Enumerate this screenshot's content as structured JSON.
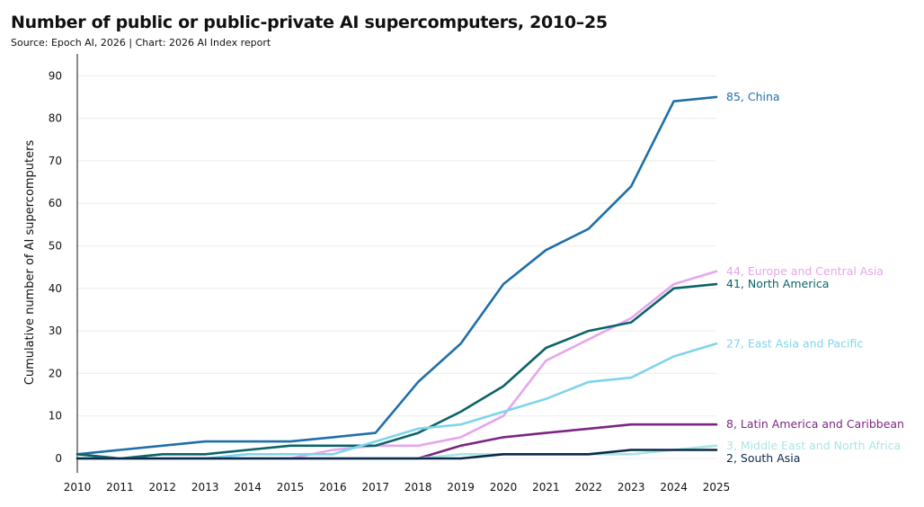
{
  "chart_data": {
    "type": "line",
    "title": "Number of public or public-private AI supercomputers, 2010–25",
    "subtitle": "Source: Epoch AI, 2026 | Chart: 2026 AI Index report",
    "xlabel": "",
    "ylabel": "Cumulative number of AI supercomputers",
    "x": [
      "2010",
      "2011",
      "2012",
      "2013",
      "2014",
      "2015",
      "2016",
      "2017",
      "2018",
      "2019",
      "2020",
      "2021",
      "2022",
      "2023",
      "2024",
      "2025"
    ],
    "ylim": [
      0,
      90
    ],
    "yticks": [
      "0",
      "10",
      "20",
      "30",
      "40",
      "50",
      "60",
      "70",
      "80",
      "90"
    ],
    "grid": "horizontal",
    "series": [
      {
        "name": "China",
        "label": "85, China",
        "color": "#1f6fa8",
        "values": [
          1,
          2,
          3,
          4,
          4,
          4,
          5,
          6,
          18,
          27,
          41,
          49,
          54,
          64,
          84,
          85
        ]
      },
      {
        "name": "Europe and Central Asia",
        "label": "44, Europe and Central Asia",
        "color": "#e6a6ec",
        "values": [
          0,
          0,
          0,
          0,
          0,
          0,
          2,
          3,
          3,
          5,
          10,
          23,
          28,
          33,
          41,
          44
        ]
      },
      {
        "name": "North America",
        "label": "41, North America",
        "color": "#0b6468",
        "values": [
          1,
          0,
          1,
          1,
          2,
          3,
          3,
          3,
          6,
          11,
          17,
          26,
          30,
          32,
          40,
          41
        ]
      },
      {
        "name": "East Asia and Pacific",
        "label": "27, East Asia and Pacific",
        "color": "#7fd4ec",
        "values": [
          0,
          0,
          0,
          0,
          1,
          1,
          1,
          4,
          7,
          8,
          11,
          14,
          18,
          19,
          24,
          27
        ]
      },
      {
        "name": "Latin America and Caribbean",
        "label": "8, Latin America and Caribbean",
        "color": "#7b2682",
        "values": [
          0,
          0,
          0,
          0,
          0,
          0,
          0,
          0,
          0,
          3,
          5,
          6,
          7,
          8,
          8,
          8
        ]
      },
      {
        "name": "Middle East and North Africa",
        "label": "3, Middle East and North Africa",
        "color": "#a8e6e6",
        "values": [
          0,
          0,
          0,
          0,
          0,
          0,
          0,
          0,
          0,
          1,
          1,
          1,
          1,
          1,
          2,
          3
        ]
      },
      {
        "name": "South Asia",
        "label": "2, South Asia",
        "color": "#0b2a4a",
        "values": [
          0,
          0,
          0,
          0,
          0,
          0,
          0,
          0,
          0,
          0,
          1,
          1,
          1,
          2,
          2,
          2
        ]
      }
    ]
  }
}
